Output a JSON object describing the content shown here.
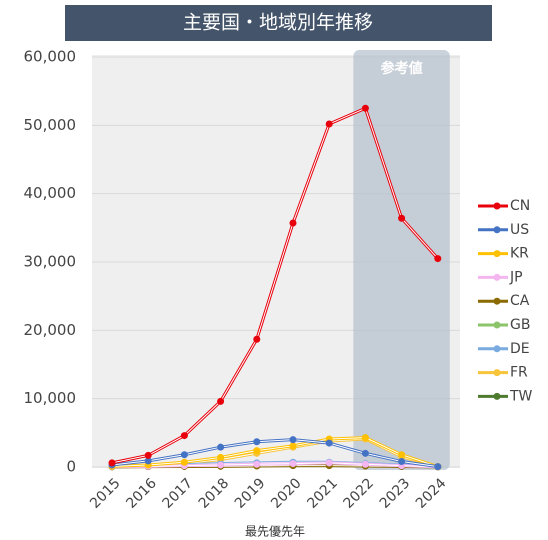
{
  "chart_data": {
    "type": "line",
    "title": "主要国・地域別年推移",
    "x_label": "最先優先年",
    "annotation": "参考値",
    "shaded_from": "2022",
    "shaded_to": "2024",
    "categories": [
      "2015",
      "2016",
      "2017",
      "2018",
      "2019",
      "2020",
      "2021",
      "2022",
      "2023",
      "2024"
    ],
    "series": [
      {
        "name": "CN",
        "color": "#e8000b",
        "values": [
          600,
          1700,
          4600,
          9600,
          18700,
          35700,
          50200,
          52500,
          36400,
          30500
        ]
      },
      {
        "name": "US",
        "color": "#4472c4",
        "values": [
          300,
          900,
          1800,
          2900,
          3700,
          4000,
          3500,
          2000,
          800,
          50
        ]
      },
      {
        "name": "KR",
        "color": "#ffc000",
        "values": [
          100,
          300,
          700,
          1400,
          2400,
          3100,
          4100,
          4300,
          1800,
          50
        ]
      },
      {
        "name": "JP",
        "color": "#f4b6f0",
        "values": [
          50,
          100,
          200,
          300,
          400,
          500,
          600,
          400,
          200,
          20
        ]
      },
      {
        "name": "CA",
        "color": "#8b6a00",
        "values": [
          20,
          50,
          80,
          100,
          150,
          200,
          200,
          150,
          80,
          10
        ]
      },
      {
        "name": "GB",
        "color": "#8cc46a",
        "values": [
          50,
          100,
          150,
          250,
          350,
          400,
          400,
          300,
          150,
          10
        ]
      },
      {
        "name": "DE",
        "color": "#7aabe0",
        "values": [
          100,
          200,
          350,
          500,
          600,
          700,
          700,
          500,
          300,
          20
        ]
      },
      {
        "name": "FR",
        "color": "#f7c43a",
        "values": [
          50,
          200,
          500,
          1100,
          2000,
          2900,
          3800,
          4100,
          1500,
          50
        ]
      },
      {
        "name": "TW",
        "color": "#4e7a2e",
        "values": [
          30,
          80,
          150,
          200,
          250,
          300,
          300,
          250,
          150,
          10
        ]
      }
    ],
    "ylim": [
      0,
      60000
    ],
    "yticks": [
      0,
      {
        "value": 10000,
        "label": "10,000"
      },
      {
        "value": 20000,
        "label": "20,000"
      },
      {
        "value": 30000,
        "label": "30,000"
      },
      {
        "value": 40000,
        "label": "40,000"
      },
      {
        "value": 50000,
        "label": "50,000"
      },
      {
        "value": 60000,
        "label": "60,000"
      }
    ],
    "grid": true,
    "legend": "right"
  }
}
